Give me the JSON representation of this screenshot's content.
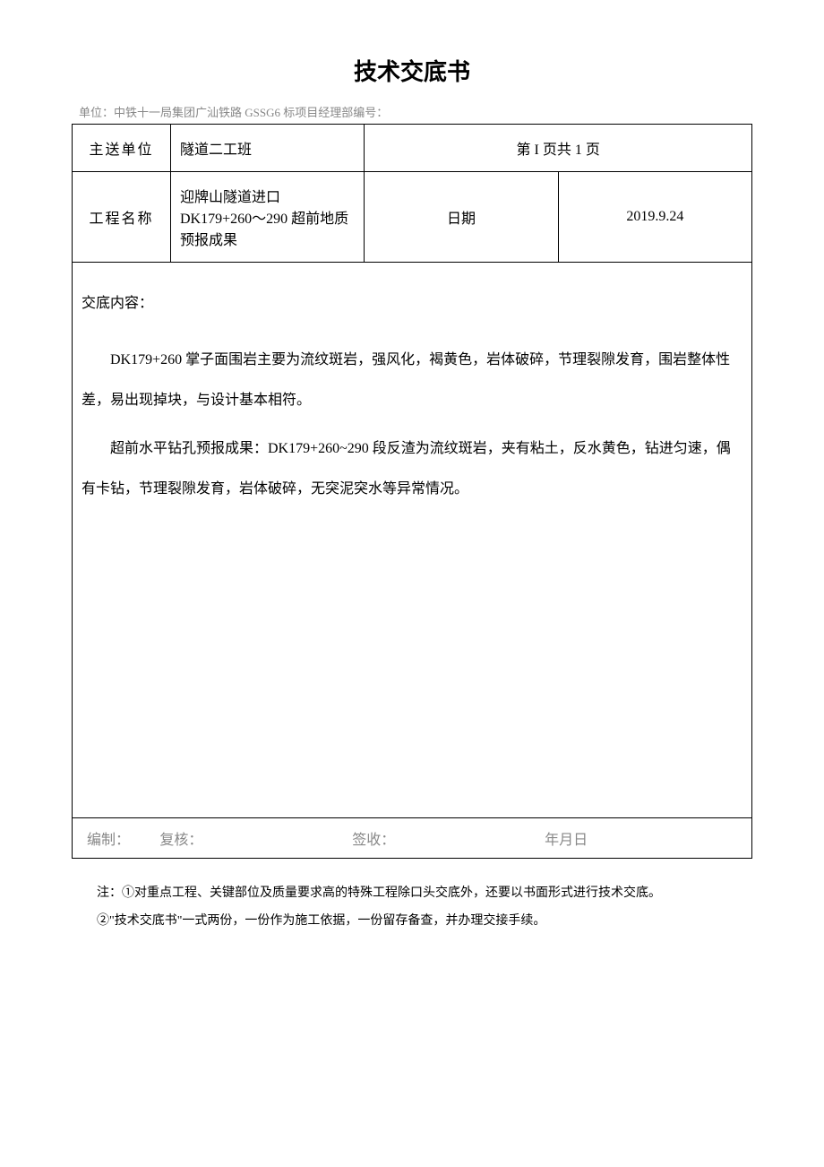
{
  "title": "技术交底书",
  "unit_line": "单位：中铁十一局集团广汕铁路 GSSG6 标项目经理部编号：",
  "row1": {
    "label": "主送单位",
    "value": "隧道二工班",
    "page_info": "第 I 页共 1 页"
  },
  "row2": {
    "label": "工程名称",
    "value": "迎牌山隧道进口 DK179+260～290 超前地质预报成果",
    "date_label": "日期",
    "date_value": "2019.9.24"
  },
  "content": {
    "heading": "交底内容：",
    "p1": "DK179+260 掌子面围岩主要为流纹斑岩，强风化，褐黄色，岩体破碎，节理裂隙发育，围岩整体性差，易出现掉块，与设计基本相符。",
    "p2": "超前水平钻孔预报成果：DK179+260~290 段反渣为流纹斑岩，夹有粘土，反水黄色，钻进匀速，偶有卡钻，节理裂隙发育，岩体破碎，无突泥突水等异常情况。"
  },
  "footer": {
    "f1": "编制：",
    "f2": "复核：",
    "f3": "签收：",
    "f4": "年月日"
  },
  "notes": {
    "n1": "注：①对重点工程、关键部位及质量要求高的特殊工程除口头交底外，还要以书面形式进行技术交底。",
    "n2": "②\"技术交底书\"一式两份，一份作为施工依据，一份留存备查，并办理交接手续。"
  }
}
